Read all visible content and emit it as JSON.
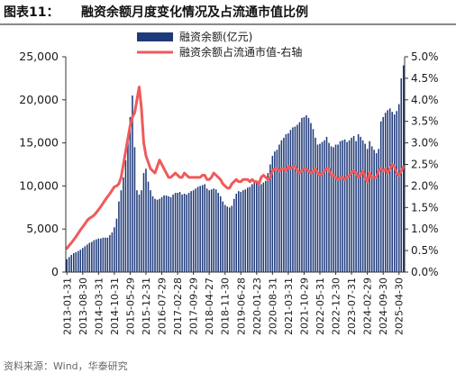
{
  "figure": {
    "number": "图表11：",
    "title": "融资余额月度变化情况及占流通市值比例",
    "source": "资料来源：Wind，华泰研究"
  },
  "colors": {
    "bar": "#1F3A7A",
    "line": "#F05A5A",
    "axis": "#333333",
    "text": "#1a1a1a"
  },
  "chart_data": {
    "type": "bar",
    "title": "",
    "xlabel": "",
    "ylabel": "",
    "y2label": "",
    "ylim": [
      0,
      25000
    ],
    "y2lim": [
      0,
      5.0
    ],
    "yticks": [
      "0",
      "5,000",
      "10,000",
      "15,000",
      "20,000",
      "25,000"
    ],
    "y2ticks": [
      "0.0%",
      "0.5%",
      "1.0%",
      "1.5%",
      "2.0%",
      "2.5%",
      "3.0%",
      "3.5%",
      "4.0%",
      "4.5%",
      "5.0%"
    ],
    "grid": false,
    "legend_position": "top-left",
    "xtick_labels": [
      "2013-01-31",
      "2013-08-30",
      "2014-03-31",
      "2014-10-31",
      "2015-05-29",
      "2015-12-31",
      "2016-07-29",
      "2017-02-28",
      "2017-09-29",
      "2018-04-27",
      "2018-11-30",
      "2019-06-28",
      "2020-01-23",
      "2020-08-31",
      "2021-03-31",
      "2021-10-29",
      "2022-05-31",
      "2022-12-30",
      "2023-07-31",
      "2024-02-29",
      "2024-09-30",
      "2025-04-30"
    ],
    "series": [
      {
        "name": "融资余额(亿元)",
        "axis": "left",
        "type": "bar",
        "values": [
          1500,
          1750,
          2000,
          2200,
          2300,
          2450,
          2600,
          2800,
          3000,
          3200,
          3400,
          3500,
          3700,
          3800,
          3900,
          3900,
          4000,
          4000,
          4000,
          4300,
          4600,
          5200,
          6200,
          8200,
          9500,
          11000,
          13000,
          15000,
          18000,
          20500,
          14500,
          9500,
          9000,
          9500,
          11500,
          12000,
          10500,
          9500,
          8800,
          8500,
          8400,
          8500,
          8700,
          8900,
          8900,
          8800,
          8700,
          9000,
          9200,
          9200,
          9300,
          9000,
          9100,
          9000,
          9200,
          9400,
          9500,
          9700,
          9900,
          10000,
          10100,
          10200,
          9700,
          9500,
          9600,
          9700,
          9600,
          9200,
          8800,
          8200,
          7800,
          7600,
          7500,
          7700,
          8500,
          9100,
          9400,
          9300,
          9500,
          9600,
          9800,
          9900,
          10200,
          10400,
          10600,
          10300,
          10200,
          10400,
          10600,
          11500,
          12500,
          13500,
          14000,
          14200,
          14800,
          15300,
          15600,
          16000,
          16100,
          16500,
          16800,
          16900,
          17100,
          17400,
          17900,
          18000,
          18200,
          17900,
          17300,
          16600,
          15600,
          14800,
          14900,
          15100,
          15300,
          15700,
          15000,
          14600,
          14500,
          14800,
          14800,
          15200,
          15300,
          15400,
          15100,
          15300,
          15600,
          15800,
          15200,
          16000,
          15700,
          15300,
          14900,
          14300,
          15200,
          14600,
          14200,
          13800,
          14300,
          17500,
          18000,
          18500,
          18800,
          19000,
          18600,
          18300,
          18700,
          19500,
          22500,
          24000
        ]
      },
      {
        "name": "融资余额占流通市值-右轴",
        "axis": "right",
        "type": "line",
        "values": [
          0.55,
          0.62,
          0.68,
          0.75,
          0.82,
          0.9,
          0.98,
          1.05,
          1.12,
          1.2,
          1.25,
          1.28,
          1.32,
          1.38,
          1.45,
          1.52,
          1.6,
          1.68,
          1.75,
          1.82,
          1.9,
          1.98,
          2.0,
          2.05,
          2.2,
          2.5,
          2.8,
          3.1,
          3.4,
          3.6,
          3.7,
          4.0,
          4.3,
          3.8,
          3.0,
          2.7,
          2.55,
          2.4,
          2.35,
          2.3,
          2.45,
          2.6,
          2.5,
          2.4,
          2.3,
          2.2,
          2.2,
          2.25,
          2.3,
          2.25,
          2.2,
          2.2,
          2.3,
          2.25,
          2.2,
          2.2,
          2.2,
          2.2,
          2.2,
          2.2,
          2.25,
          2.25,
          2.15,
          2.15,
          2.2,
          2.3,
          2.25,
          2.2,
          2.15,
          2.05,
          2.0,
          1.95,
          1.95,
          2.05,
          2.1,
          2.15,
          2.1,
          2.1,
          2.15,
          2.15,
          2.15,
          2.1,
          2.15,
          2.1,
          2.1,
          2.05,
          2.2,
          2.25,
          2.2,
          2.15,
          2.2,
          2.35,
          2.4,
          2.4,
          2.35,
          2.4,
          2.4,
          2.35,
          2.45,
          2.4,
          2.45,
          2.45,
          2.35,
          2.3,
          2.35,
          2.4,
          2.4,
          2.35,
          2.3,
          2.35,
          2.4,
          2.3,
          2.25,
          2.3,
          2.35,
          2.4,
          2.4,
          2.25,
          2.25,
          2.2,
          2.15,
          2.2,
          2.2,
          2.15,
          2.2,
          2.25,
          2.3,
          2.35,
          2.3,
          2.2,
          2.25,
          2.35,
          2.2,
          2.1,
          2.3,
          2.2,
          2.2,
          2.2,
          2.35,
          2.4,
          2.35,
          2.4,
          2.3,
          2.4,
          2.5,
          2.45,
          2.3,
          2.25,
          2.35,
          2.45
        ]
      }
    ]
  }
}
